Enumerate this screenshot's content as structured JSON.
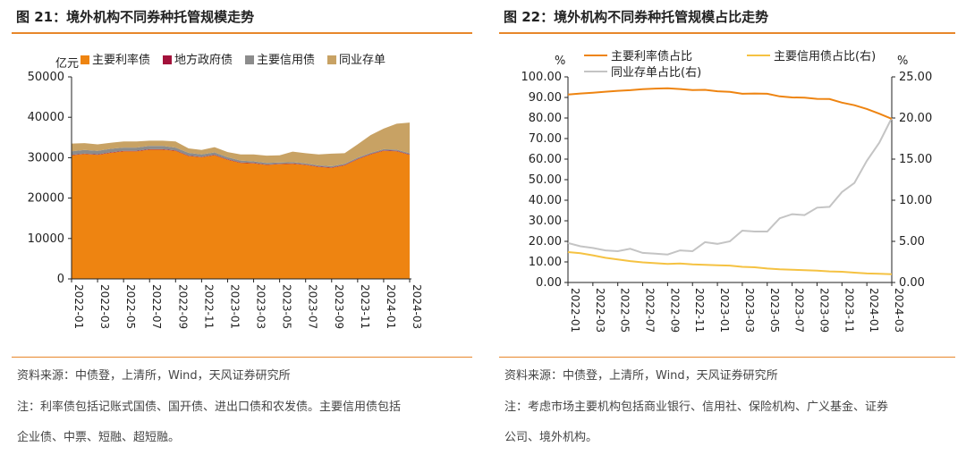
{
  "left": {
    "title": "图 21：境外机构不同券种托管规模走势",
    "source": "资料来源：中债登，上清所，Wind，天风证券研究所",
    "note_line1": "注：利率债包括记账式国债、国开债、进出口债和农发债。主要信用债包括",
    "note_line2": "企业债、中票、短融、超短融。"
  },
  "right": {
    "title": "图 22：境外机构不同券种托管规模占比走势",
    "source": "资料来源：中债登，上清所，Wind，天风证券研究所",
    "note_line1": "注：考虑市场主要机构包括商业银行、信用社、保险机构、广义基金、证券",
    "note_line2": "公司、境外机构。"
  },
  "colors": {
    "rate": "#ee8411",
    "local": "#a3123b",
    "credit": "#8c8c8c",
    "ncd": "#c8a264",
    "gray_line": "#c4c4c4",
    "yellow_line": "#f5c242",
    "rule": "#e8872a"
  },
  "chart_data": [
    {
      "type": "area",
      "stacked": true,
      "ylabel": "亿元",
      "ylim": [
        0,
        50000
      ],
      "yticks": [
        "0",
        "10000",
        "20000",
        "30000",
        "40000",
        "50000"
      ],
      "xtick_labels": [
        "2022-01",
        "2022-03",
        "2022-05",
        "2022-07",
        "2022-09",
        "2022-11",
        "2023-01",
        "2023-03",
        "2023-05",
        "2023-07",
        "2023-09",
        "2023-11",
        "2024-01",
        "2024-03"
      ],
      "x": [
        "2022-01",
        "2022-02",
        "2022-03",
        "2022-04",
        "2022-05",
        "2022-06",
        "2022-07",
        "2022-08",
        "2022-09",
        "2022-10",
        "2022-11",
        "2022-12",
        "2023-01",
        "2023-02",
        "2023-03",
        "2023-04",
        "2023-05",
        "2023-06",
        "2023-07",
        "2023-08",
        "2023-09",
        "2023-10",
        "2023-11",
        "2023-12",
        "2024-01",
        "2024-02",
        "2024-03"
      ],
      "legend_position": "top",
      "series": [
        {
          "name": "主要利率债",
          "color_key": "rate",
          "values": [
            30600,
            30900,
            30700,
            31200,
            31600,
            31600,
            32000,
            32000,
            31700,
            30400,
            30100,
            30600,
            29500,
            28700,
            28600,
            28200,
            28400,
            28500,
            28200,
            27700,
            27500,
            28100,
            29600,
            30800,
            31700,
            31600,
            30700
          ]
        },
        {
          "name": "地方政府债",
          "color_key": "local",
          "values": [
            100,
            100,
            100,
            100,
            100,
            100,
            100,
            100,
            100,
            100,
            100,
            100,
            100,
            100,
            100,
            100,
            100,
            100,
            100,
            100,
            100,
            100,
            100,
            100,
            100,
            100,
            100
          ]
        },
        {
          "name": "主要信用债",
          "color_key": "credit",
          "values": [
            900,
            900,
            900,
            900,
            800,
            800,
            800,
            800,
            700,
            700,
            600,
            600,
            500,
            500,
            400,
            400,
            300,
            300,
            300,
            300,
            300,
            300,
            300,
            300,
            300,
            300,
            300
          ]
        },
        {
          "name": "同业存单",
          "color_key": "ncd",
          "values": [
            1900,
            1700,
            1600,
            1500,
            1500,
            1500,
            1300,
            1300,
            1500,
            1100,
            1100,
            1300,
            1300,
            1500,
            1700,
            1800,
            1800,
            2600,
            2500,
            2700,
            3100,
            2600,
            3300,
            4400,
            5100,
            6400,
            7600
          ]
        }
      ]
    },
    {
      "type": "line",
      "dual_axis": true,
      "y_left_label": "%",
      "y_right_label": "%",
      "ylim_left": [
        0,
        100
      ],
      "ylim_right": [
        0,
        25
      ],
      "yticks_left": [
        "0.00",
        "10.00",
        "20.00",
        "30.00",
        "40.00",
        "50.00",
        "60.00",
        "70.00",
        "80.00",
        "90.00",
        "100.00"
      ],
      "yticks_right": [
        "0.00",
        "5.00",
        "10.00",
        "15.00",
        "20.00",
        "25.00"
      ],
      "xtick_labels": [
        "2022-01",
        "2022-03",
        "2022-05",
        "2022-07",
        "2022-09",
        "2022-11",
        "2023-01",
        "2023-03",
        "2023-05",
        "2023-07",
        "2023-09",
        "2023-11",
        "2024-01",
        "2024-03"
      ],
      "x": [
        "2022-01",
        "2022-02",
        "2022-03",
        "2022-04",
        "2022-05",
        "2022-06",
        "2022-07",
        "2022-08",
        "2022-09",
        "2022-10",
        "2022-11",
        "2022-12",
        "2023-01",
        "2023-02",
        "2023-03",
        "2023-04",
        "2023-05",
        "2023-06",
        "2023-07",
        "2023-08",
        "2023-09",
        "2023-10",
        "2023-11",
        "2023-12",
        "2024-01",
        "2024-02",
        "2024-03"
      ],
      "legend_position": "top",
      "series": [
        {
          "name": "主要利率债占比",
          "axis": "left",
          "color_key": "rate",
          "values": [
            91.4,
            91.9,
            92.3,
            92.8,
            93.2,
            93.5,
            94.0,
            94.3,
            94.5,
            94.1,
            93.6,
            93.7,
            93.0,
            92.7,
            91.8,
            91.9,
            91.8,
            90.5,
            90.0,
            89.9,
            89.3,
            89.2,
            87.5,
            86.2,
            84.4,
            82.1,
            79.6
          ]
        },
        {
          "name": "主要信用债占比(右)",
          "axis": "right",
          "color_key": "yellow_line",
          "values": [
            3.7,
            3.55,
            3.3,
            3.0,
            2.8,
            2.6,
            2.45,
            2.35,
            2.25,
            2.3,
            2.2,
            2.15,
            2.1,
            2.05,
            1.9,
            1.85,
            1.7,
            1.6,
            1.55,
            1.5,
            1.45,
            1.35,
            1.3,
            1.2,
            1.1,
            1.05,
            1.0
          ]
        },
        {
          "name": "同业存单占比(右)",
          "axis": "right",
          "color_key": "gray_line",
          "values": [
            4.8,
            4.4,
            4.2,
            3.9,
            3.8,
            4.1,
            3.6,
            3.5,
            3.4,
            3.9,
            3.8,
            4.9,
            4.7,
            5.0,
            6.3,
            6.2,
            6.2,
            7.8,
            8.3,
            8.2,
            9.1,
            9.2,
            11.0,
            12.1,
            14.8,
            17.0,
            20.0
          ]
        }
      ]
    }
  ]
}
